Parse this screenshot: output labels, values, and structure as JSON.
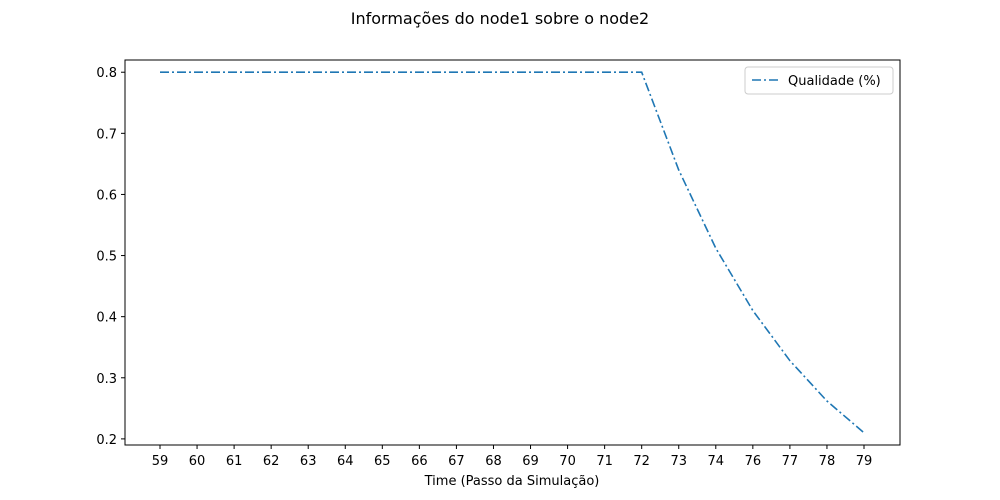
{
  "chart_data": {
    "type": "line",
    "title": "Informações do node1 sobre o node2",
    "xlabel": "Time (Passo da Simulação)",
    "ylabel": "",
    "x": [
      "59",
      "60",
      "61",
      "62",
      "63",
      "64",
      "65",
      "66",
      "67",
      "68",
      "69",
      "70",
      "71",
      "72",
      "73",
      "74",
      "76",
      "77",
      "78",
      "79"
    ],
    "yticks": [
      "0.2",
      "0.3",
      "0.4",
      "0.5",
      "0.6",
      "0.7",
      "0.8"
    ],
    "ylim": [
      0.19,
      0.82
    ],
    "grid": false,
    "legend_position": "top-right",
    "series": [
      {
        "name": "Qualidade (%)",
        "color": "#1f77b4",
        "line_style": "dash-dot",
        "values": [
          0.8,
          0.8,
          0.8,
          0.8,
          0.8,
          0.8,
          0.8,
          0.8,
          0.8,
          0.8,
          0.8,
          0.8,
          0.8,
          0.8,
          0.64,
          0.512,
          0.41,
          0.328,
          0.262,
          0.21
        ]
      }
    ]
  }
}
